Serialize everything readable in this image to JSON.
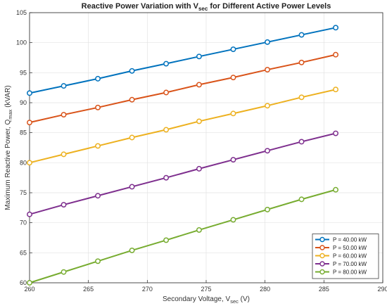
{
  "chart_data": {
    "type": "line",
    "title": {
      "main": "Reactive Power Variation with V",
      "sub": "sec",
      "rest": " for Different Active Power Levels"
    },
    "xlabel": {
      "main": "Secondary Voltage, V",
      "sub": "sec",
      "rest": " (V)"
    },
    "ylabel": {
      "main": "Maximum Reactive Power, Q",
      "sub": "max",
      "rest": " (kVAR)"
    },
    "xlim": [
      260,
      290
    ],
    "ylim": [
      60,
      105
    ],
    "xticks": [
      260,
      265,
      270,
      275,
      280,
      285,
      290
    ],
    "yticks": [
      60,
      65,
      70,
      75,
      80,
      85,
      90,
      95,
      100,
      105
    ],
    "grid": true,
    "legend_position": "bottom-right",
    "x": [
      260,
      262.9,
      265.8,
      268.7,
      271.6,
      274.4,
      277.3,
      280.2,
      283.1,
      286
    ],
    "series": [
      {
        "name": "P = 40.00 kW",
        "color": "#0072BD",
        "values": [
          91.6,
          92.8,
          94.0,
          95.3,
          96.5,
          97.7,
          98.9,
          100.1,
          101.3,
          102.5
        ]
      },
      {
        "name": "P = 50.00 kW",
        "color": "#D95319",
        "values": [
          86.7,
          88.0,
          89.2,
          90.5,
          91.7,
          93.0,
          94.2,
          95.5,
          96.7,
          98.0
        ]
      },
      {
        "name": "P = 60.00 kW",
        "color": "#EDB120",
        "values": [
          80.0,
          81.4,
          82.8,
          84.2,
          85.5,
          86.9,
          88.2,
          89.5,
          90.9,
          92.2
        ]
      },
      {
        "name": "P = 70.00 kW",
        "color": "#7E2F8E",
        "values": [
          71.4,
          73.0,
          74.5,
          76.0,
          77.5,
          79.0,
          80.5,
          82.0,
          83.5,
          84.9
        ]
      },
      {
        "name": "P = 80.00 kW",
        "color": "#77AC30",
        "values": [
          60.0,
          61.8,
          63.6,
          65.4,
          67.1,
          68.8,
          70.5,
          72.2,
          73.9,
          75.5
        ]
      }
    ]
  }
}
